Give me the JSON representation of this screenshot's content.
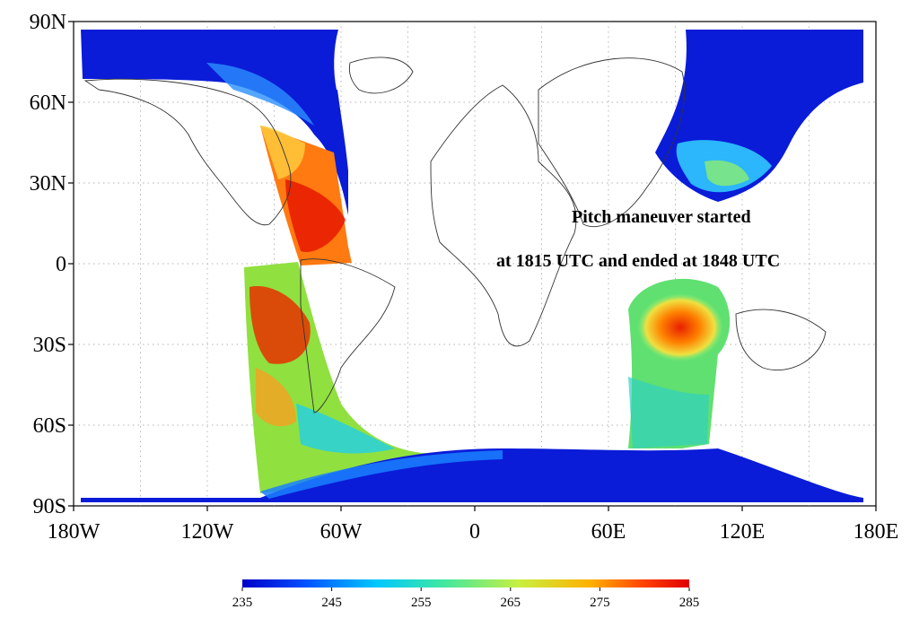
{
  "map": {
    "lat_labels": [
      "90N",
      "60N",
      "30N",
      "0",
      "30S",
      "60S",
      "90S"
    ],
    "lon_labels": [
      "180W",
      "120W",
      "60W",
      "0",
      "60E",
      "120E",
      "180E"
    ],
    "lat_range": [
      -90,
      90
    ],
    "lon_range": [
      -180,
      180
    ],
    "gridlines": "dotted",
    "annotation": {
      "line1": "Pitch maneuver started",
      "line2": "at 1815 UTC and ended at 1848 UTC"
    }
  },
  "colorbar": {
    "min": 235,
    "max": 285,
    "tick_labels": [
      "235",
      "245",
      "255",
      "265",
      "275",
      "285"
    ],
    "colormap": [
      "#0000c8",
      "#0050ff",
      "#00c8ff",
      "#40e8a0",
      "#c8f040",
      "#ffb000",
      "#ff4000",
      "#e00000"
    ]
  }
}
